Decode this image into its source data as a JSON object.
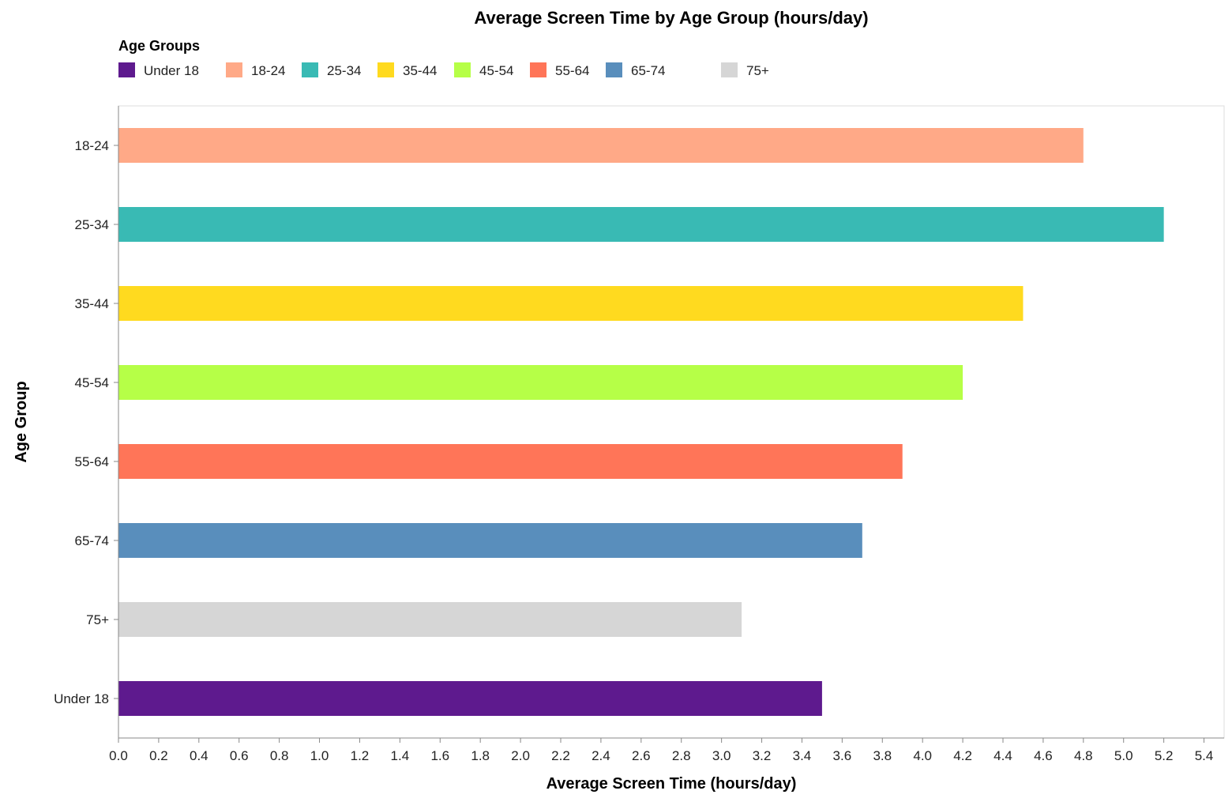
{
  "chart_data": {
    "type": "bar",
    "orientation": "horizontal",
    "title": "Average Screen Time by Age Group (hours/day)",
    "xlabel": "Average Screen Time (hours/day)",
    "ylabel": "Age Group",
    "xlim": [
      0,
      5.5
    ],
    "x_ticks": [
      0.0,
      0.2,
      0.4,
      0.6,
      0.8,
      1.0,
      1.2,
      1.4,
      1.6,
      1.8,
      2.0,
      2.2,
      2.4,
      2.6,
      2.8,
      3.0,
      3.2,
      3.4,
      3.6,
      3.8,
      4.0,
      4.2,
      4.4,
      4.6,
      4.8,
      5.0,
      5.2,
      5.4
    ],
    "grid": false,
    "legend": {
      "title": "Age Groups",
      "placement": "top-left",
      "entries": [
        "Under 18",
        "18-24",
        "25-34",
        "35-44",
        "45-54",
        "55-64",
        "65-74",
        "75+"
      ]
    },
    "colors": {
      "Under 18": "#5E1A8E",
      "18-24": "#FFA987",
      "25-34": "#39BAB4",
      "35-44": "#FFDA1F",
      "45-54": "#B6FF47",
      "55-64": "#FF7558",
      "65-74": "#598EBC",
      "75+": "#D6D6D6"
    },
    "categories": [
      "18-24",
      "25-34",
      "35-44",
      "45-54",
      "55-64",
      "65-74",
      "75+",
      "Under 18"
    ],
    "values": [
      4.8,
      5.2,
      4.5,
      4.2,
      3.9,
      3.7,
      3.1,
      3.5
    ]
  }
}
